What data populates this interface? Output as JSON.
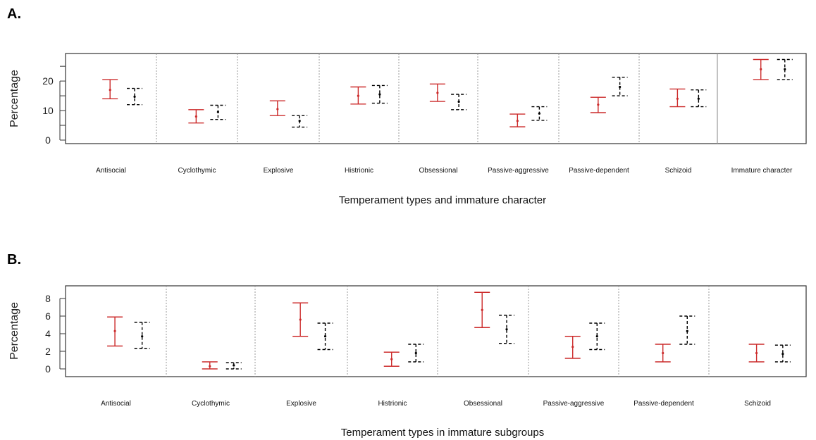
{
  "colors": {
    "group1": "#cc2b2b",
    "group2": "#000000",
    "separator": "#9a9a9a"
  },
  "chart_data": [
    {
      "type": "errorbar",
      "panel_label": "A.",
      "xlabel": "Temperament types and immature character",
      "ylabel": "Percentage",
      "ylim": [
        0,
        26
      ],
      "yticks": [
        0,
        10,
        20
      ],
      "categories": [
        "Antisocial",
        "Cyclothymic",
        "Explosive",
        "Histrionic",
        "Obsessional",
        "Passive-aggressive",
        "Passive-dependent",
        "Schizoid",
        "Immature character"
      ],
      "series": [
        {
          "color": "red",
          "line_style": "solid",
          "mean": [
            17.0,
            8.0,
            10.5,
            15.0,
            16.0,
            6.5,
            12.0,
            14.0,
            24.0
          ],
          "lower": [
            14.0,
            5.8,
            8.3,
            12.2,
            13.1,
            4.5,
            9.3,
            11.3,
            20.5
          ],
          "upper": [
            20.5,
            10.3,
            13.3,
            18.0,
            19.0,
            8.8,
            14.5,
            17.3,
            27.3
          ]
        },
        {
          "color": "black",
          "line_style": "dashed",
          "mean": [
            14.7,
            9.5,
            6.5,
            15.5,
            13.0,
            9.0,
            18.0,
            14.0,
            24.0
          ],
          "lower": [
            12.0,
            7.0,
            4.4,
            12.5,
            10.3,
            6.7,
            15.0,
            11.3,
            20.5
          ],
          "upper": [
            17.5,
            11.8,
            8.3,
            18.5,
            15.5,
            11.3,
            21.3,
            17.0,
            27.3
          ]
        }
      ],
      "grid": false,
      "separators": "vertical lines between categories"
    },
    {
      "type": "errorbar",
      "panel_label": "B.",
      "xlabel": "Temperament types in immature subgroups",
      "ylabel": "Percentage",
      "ylim": [
        0,
        9
      ],
      "yticks": [
        0,
        2,
        4,
        6,
        8
      ],
      "categories": [
        "Antisocial",
        "Cyclothymic",
        "Explosive",
        "Histrionic",
        "Obsessional",
        "Passive-aggressive",
        "Passive-dependent",
        "Schizoid"
      ],
      "series": [
        {
          "color": "red",
          "line_style": "solid",
          "mean": [
            4.3,
            0.3,
            5.6,
            1.1,
            6.7,
            2.5,
            1.8,
            1.8
          ],
          "lower": [
            2.6,
            0.0,
            3.7,
            0.3,
            4.7,
            1.2,
            0.8,
            0.8
          ],
          "upper": [
            5.9,
            0.8,
            7.5,
            1.9,
            8.7,
            3.7,
            2.8,
            2.8
          ]
        },
        {
          "color": "black",
          "line_style": "dashed",
          "mean": [
            3.7,
            0.4,
            3.7,
            1.8,
            4.5,
            3.7,
            4.3,
            1.7
          ],
          "lower": [
            2.3,
            0.0,
            2.2,
            0.8,
            2.9,
            2.2,
            2.8,
            0.8
          ],
          "upper": [
            5.3,
            0.7,
            5.2,
            2.8,
            6.1,
            5.2,
            6.0,
            2.7
          ]
        }
      ],
      "grid": false,
      "separators": "vertical lines between categories"
    }
  ]
}
